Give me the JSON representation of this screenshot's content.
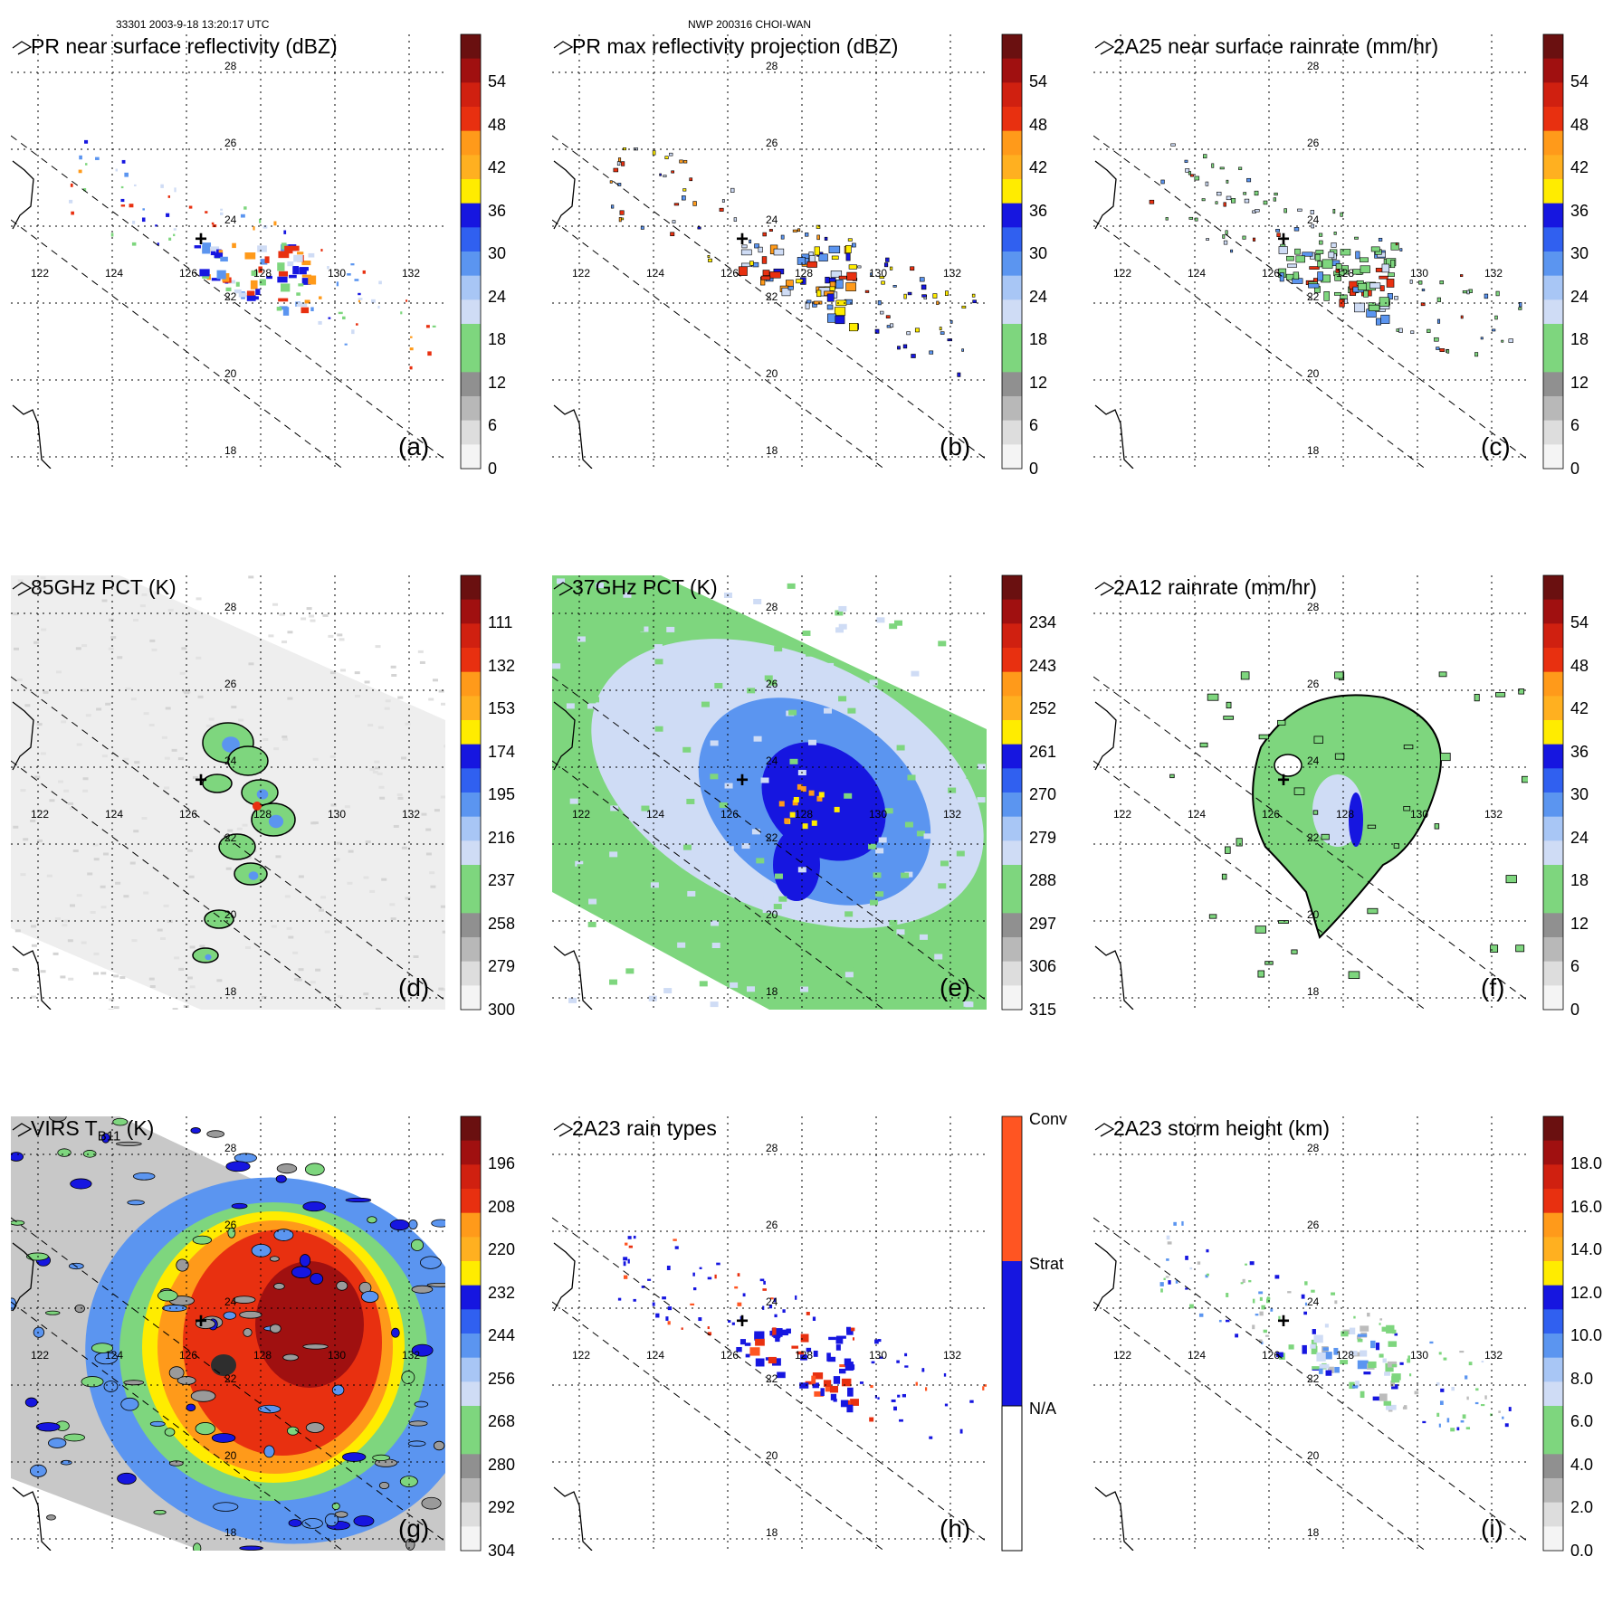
{
  "header": {
    "orbit_time": "33301  2003-9-18 13:20:17 UTC",
    "storm": "NWP 200316 CHOI-WAN"
  },
  "map": {
    "lon_labels": [
      "122",
      "124",
      "126",
      "128",
      "130",
      "132"
    ],
    "lat_labels": [
      "28",
      "26",
      "24",
      "22",
      "20",
      "18"
    ],
    "storm_center_marker": "+"
  },
  "colors": {
    "green": "#7ed67e",
    "light_blue": "#cfdcf5",
    "mid_blue": "#5b95f0",
    "blue": "#1616e0",
    "yellow": "#ffec00",
    "orange": "#ff9a1a",
    "red": "#e83010",
    "dark_red": "#a01010",
    "gray": "#bcbcbc"
  },
  "panels": [
    {
      "id": "a",
      "title": "PR near surface reflectivity (dBZ)",
      "label": "(a)",
      "type": "swath",
      "colorbar": [
        "54",
        "48",
        "42",
        "36",
        "30",
        "24",
        "18",
        "12",
        "6",
        "0"
      ]
    },
    {
      "id": "b",
      "title": "PR max reflectivity projection (dBZ)",
      "label": "(b)",
      "type": "swath",
      "colorbar": [
        "54",
        "48",
        "42",
        "36",
        "30",
        "24",
        "18",
        "12",
        "6",
        "0"
      ]
    },
    {
      "id": "c",
      "title": "2A25 near surface rainrate (mm/hr)",
      "label": "(c)",
      "type": "swath",
      "colorbar": [
        "54",
        "48",
        "42",
        "36",
        "30",
        "24",
        "18",
        "12",
        "6",
        "0"
      ]
    },
    {
      "id": "d",
      "title": "85GHz PCT (K)",
      "label": "(d)",
      "type": "wide",
      "colorbar": [
        "111",
        "132",
        "153",
        "174",
        "195",
        "216",
        "237",
        "258",
        "279",
        "300"
      ]
    },
    {
      "id": "e",
      "title": "37GHz PCT (K)",
      "label": "(e)",
      "type": "wide",
      "colorbar": [
        "234",
        "243",
        "252",
        "261",
        "270",
        "279",
        "288",
        "297",
        "306",
        "315"
      ]
    },
    {
      "id": "f",
      "title": "2A12 rainrate (mm/hr)",
      "label": "(f)",
      "type": "swath",
      "colorbar": [
        "54",
        "48",
        "42",
        "36",
        "30",
        "24",
        "18",
        "12",
        "6",
        "0"
      ]
    },
    {
      "id": "g",
      "title_main": "VIRS T",
      "title_sub": "B11",
      "title_unit": " (K)",
      "label": "(g)",
      "type": "wide",
      "colorbar": [
        "196",
        "208",
        "220",
        "232",
        "244",
        "256",
        "268",
        "280",
        "292",
        "304"
      ]
    },
    {
      "id": "h",
      "title": "2A23 rain types",
      "label": "(h)",
      "type": "swath",
      "colorbar": [
        "Conv",
        "Strat",
        "N/A"
      ]
    },
    {
      "id": "i",
      "title": "2A23 storm height (km)",
      "label": "(i)",
      "type": "swath",
      "colorbar": [
        "18.0",
        "16.0",
        "14.0",
        "12.0",
        "10.0",
        "8.0",
        "6.0",
        "4.0",
        "2.0",
        "0.0"
      ]
    }
  ]
}
